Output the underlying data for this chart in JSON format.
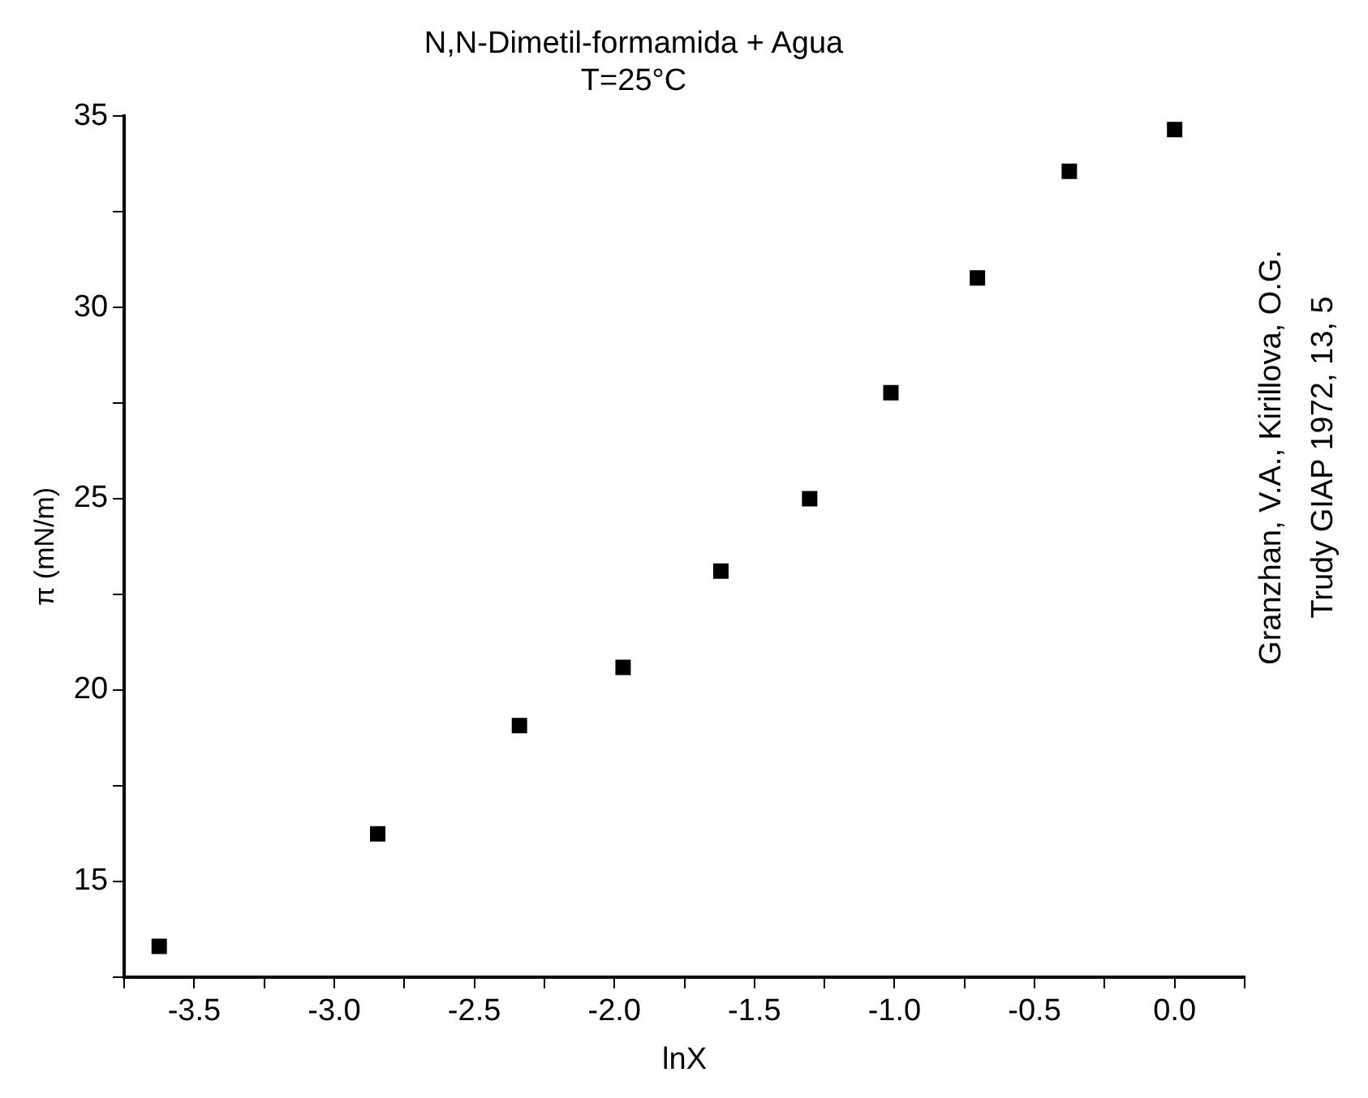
{
  "chart_data": {
    "type": "scatter",
    "title": "N,N-Dimetil-formamida + Agua",
    "subtitle": "T=25°C",
    "xlabel": "lnX",
    "ylabel": "π (mN/m)",
    "annotations": [
      "Granzhan, V.A., Kirillova, O.G.",
      "Trudy GIAP 1972, 13, 5"
    ],
    "x": [
      -3.625,
      -2.845,
      -2.339,
      -1.969,
      -1.62,
      -1.303,
      -1.013,
      -0.704,
      -0.376,
      0.0
    ],
    "series": [
      {
        "color": "#000000",
        "values": [
          13.3,
          16.24,
          19.07,
          20.59,
          23.11,
          25.0,
          27.77,
          30.77,
          33.56,
          34.65
        ]
      }
    ],
    "marker": "square",
    "grid": false,
    "legend": false,
    "xlim": [
      -3.75,
      0.25
    ],
    "ylim": [
      12.5,
      35
    ],
    "xticks": [
      {
        "value": -3.75,
        "label": null
      },
      -3.5,
      {
        "value": -3.25,
        "label": null
      },
      {
        "value": -3,
        "label": "-3.0"
      },
      {
        "value": -2.75,
        "label": null
      },
      -2.5,
      {
        "value": -2.25,
        "label": null
      },
      {
        "value": -2,
        "label": "-2.0"
      },
      {
        "value": -1.75,
        "label": null
      },
      -1.5,
      {
        "value": -1.25,
        "label": null
      },
      {
        "value": -1,
        "label": "-1.0"
      },
      {
        "value": -0.75,
        "label": null
      },
      -0.5,
      {
        "value": -0.25,
        "label": null
      },
      {
        "value": 0,
        "label": "0.0"
      },
      {
        "value": 0.25,
        "label": null
      }
    ],
    "yticks": [
      {
        "value": 12.5,
        "label": null
      },
      15,
      {
        "value": 17.5,
        "label": null
      },
      20,
      {
        "value": 22.5,
        "label": null
      },
      25,
      {
        "value": 27.5,
        "label": null
      },
      30,
      {
        "value": 32.5,
        "label": null
      },
      35
    ]
  }
}
